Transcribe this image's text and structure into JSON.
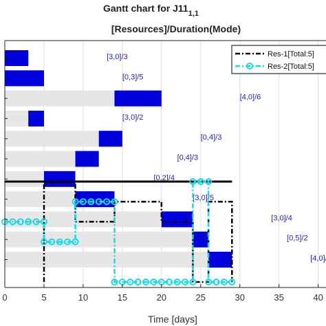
{
  "chart_data": {
    "type": "gantt",
    "title_main": "Gantt chart for J11",
    "title_sub": "1,1",
    "title_line2": "[Resources]/Duration(Mode)",
    "xlabel": "Time [days]",
    "xlim": [
      0,
      41
    ],
    "xticks": [
      0,
      5,
      10,
      15,
      20,
      25,
      30,
      35,
      40
    ],
    "tasks": [
      {
        "label": "[3,0]/3",
        "avail_start": 0,
        "avail_end": 0,
        "start": 0,
        "end": 3
      },
      {
        "label": "[0,3]/5",
        "avail_start": 0,
        "avail_end": 0,
        "start": 0,
        "end": 5
      },
      {
        "label": "[4,0]/6",
        "avail_start": 0,
        "avail_end": 14,
        "start": 14,
        "end": 20
      },
      {
        "label": "[3,0]/2",
        "avail_start": 0,
        "avail_end": 3,
        "start": 3,
        "end": 5
      },
      {
        "label": "[0,4]/3",
        "avail_start": 0,
        "avail_end": 12,
        "start": 12,
        "end": 15
      },
      {
        "label": "[0,4]/3",
        "avail_start": 0,
        "avail_end": 9,
        "start": 9,
        "end": 12
      },
      {
        "label": "[0,2]/4",
        "avail_start": 0,
        "avail_end": 5,
        "start": 5,
        "end": 9
      },
      {
        "label": "[3,0]/5",
        "avail_start": 0,
        "avail_end": 9,
        "start": 9,
        "end": 14
      },
      {
        "label": "[3,0]/4",
        "avail_start": 0,
        "avail_end": 20,
        "start": 20,
        "end": 24
      },
      {
        "label": "[0,5]/2",
        "avail_start": 0,
        "avail_end": 24,
        "start": 24,
        "end": 26
      },
      {
        "label": "[4,0]/3",
        "avail_start": 0,
        "avail_end": 26,
        "start": 26,
        "end": 29
      }
    ],
    "label_x": [
      13,
      15,
      30,
      15,
      25,
      22,
      19,
      24,
      34,
      36,
      39
    ],
    "threshold_line": {
      "value_row": 6,
      "x_start": 0,
      "x_end": 29
    },
    "series": [
      {
        "name": "Res-1[Total:5]",
        "style": "dash-dot black",
        "steps": [
          [
            5,
            0
          ],
          [
            5,
            5
          ],
          [
            9,
            5
          ],
          [
            9,
            3
          ],
          [
            14,
            3
          ],
          [
            14,
            4
          ],
          [
            20,
            4
          ],
          [
            20,
            3
          ],
          [
            24,
            3
          ],
          [
            24,
            0
          ],
          [
            26,
            0
          ],
          [
            26,
            4
          ],
          [
            29,
            4
          ],
          [
            29,
            0
          ]
        ]
      },
      {
        "name": "Res-2[Total:5]",
        "style": "dash-dot cyan circles",
        "steps": [
          [
            0,
            3
          ],
          [
            5,
            3
          ],
          [
            5,
            2
          ],
          [
            9,
            2
          ],
          [
            9,
            4
          ],
          [
            14,
            4
          ],
          [
            14,
            0
          ],
          [
            24,
            0
          ],
          [
            24,
            5
          ],
          [
            26,
            5
          ],
          [
            26,
            0
          ],
          [
            29,
            0
          ]
        ]
      }
    ],
    "legend_position": "top-right",
    "colors": {
      "bar": "#0000dd",
      "avail": "#e6e6e6",
      "res1": "#000000",
      "res2": "#17d9e8",
      "label": "#1f1fb0"
    }
  }
}
